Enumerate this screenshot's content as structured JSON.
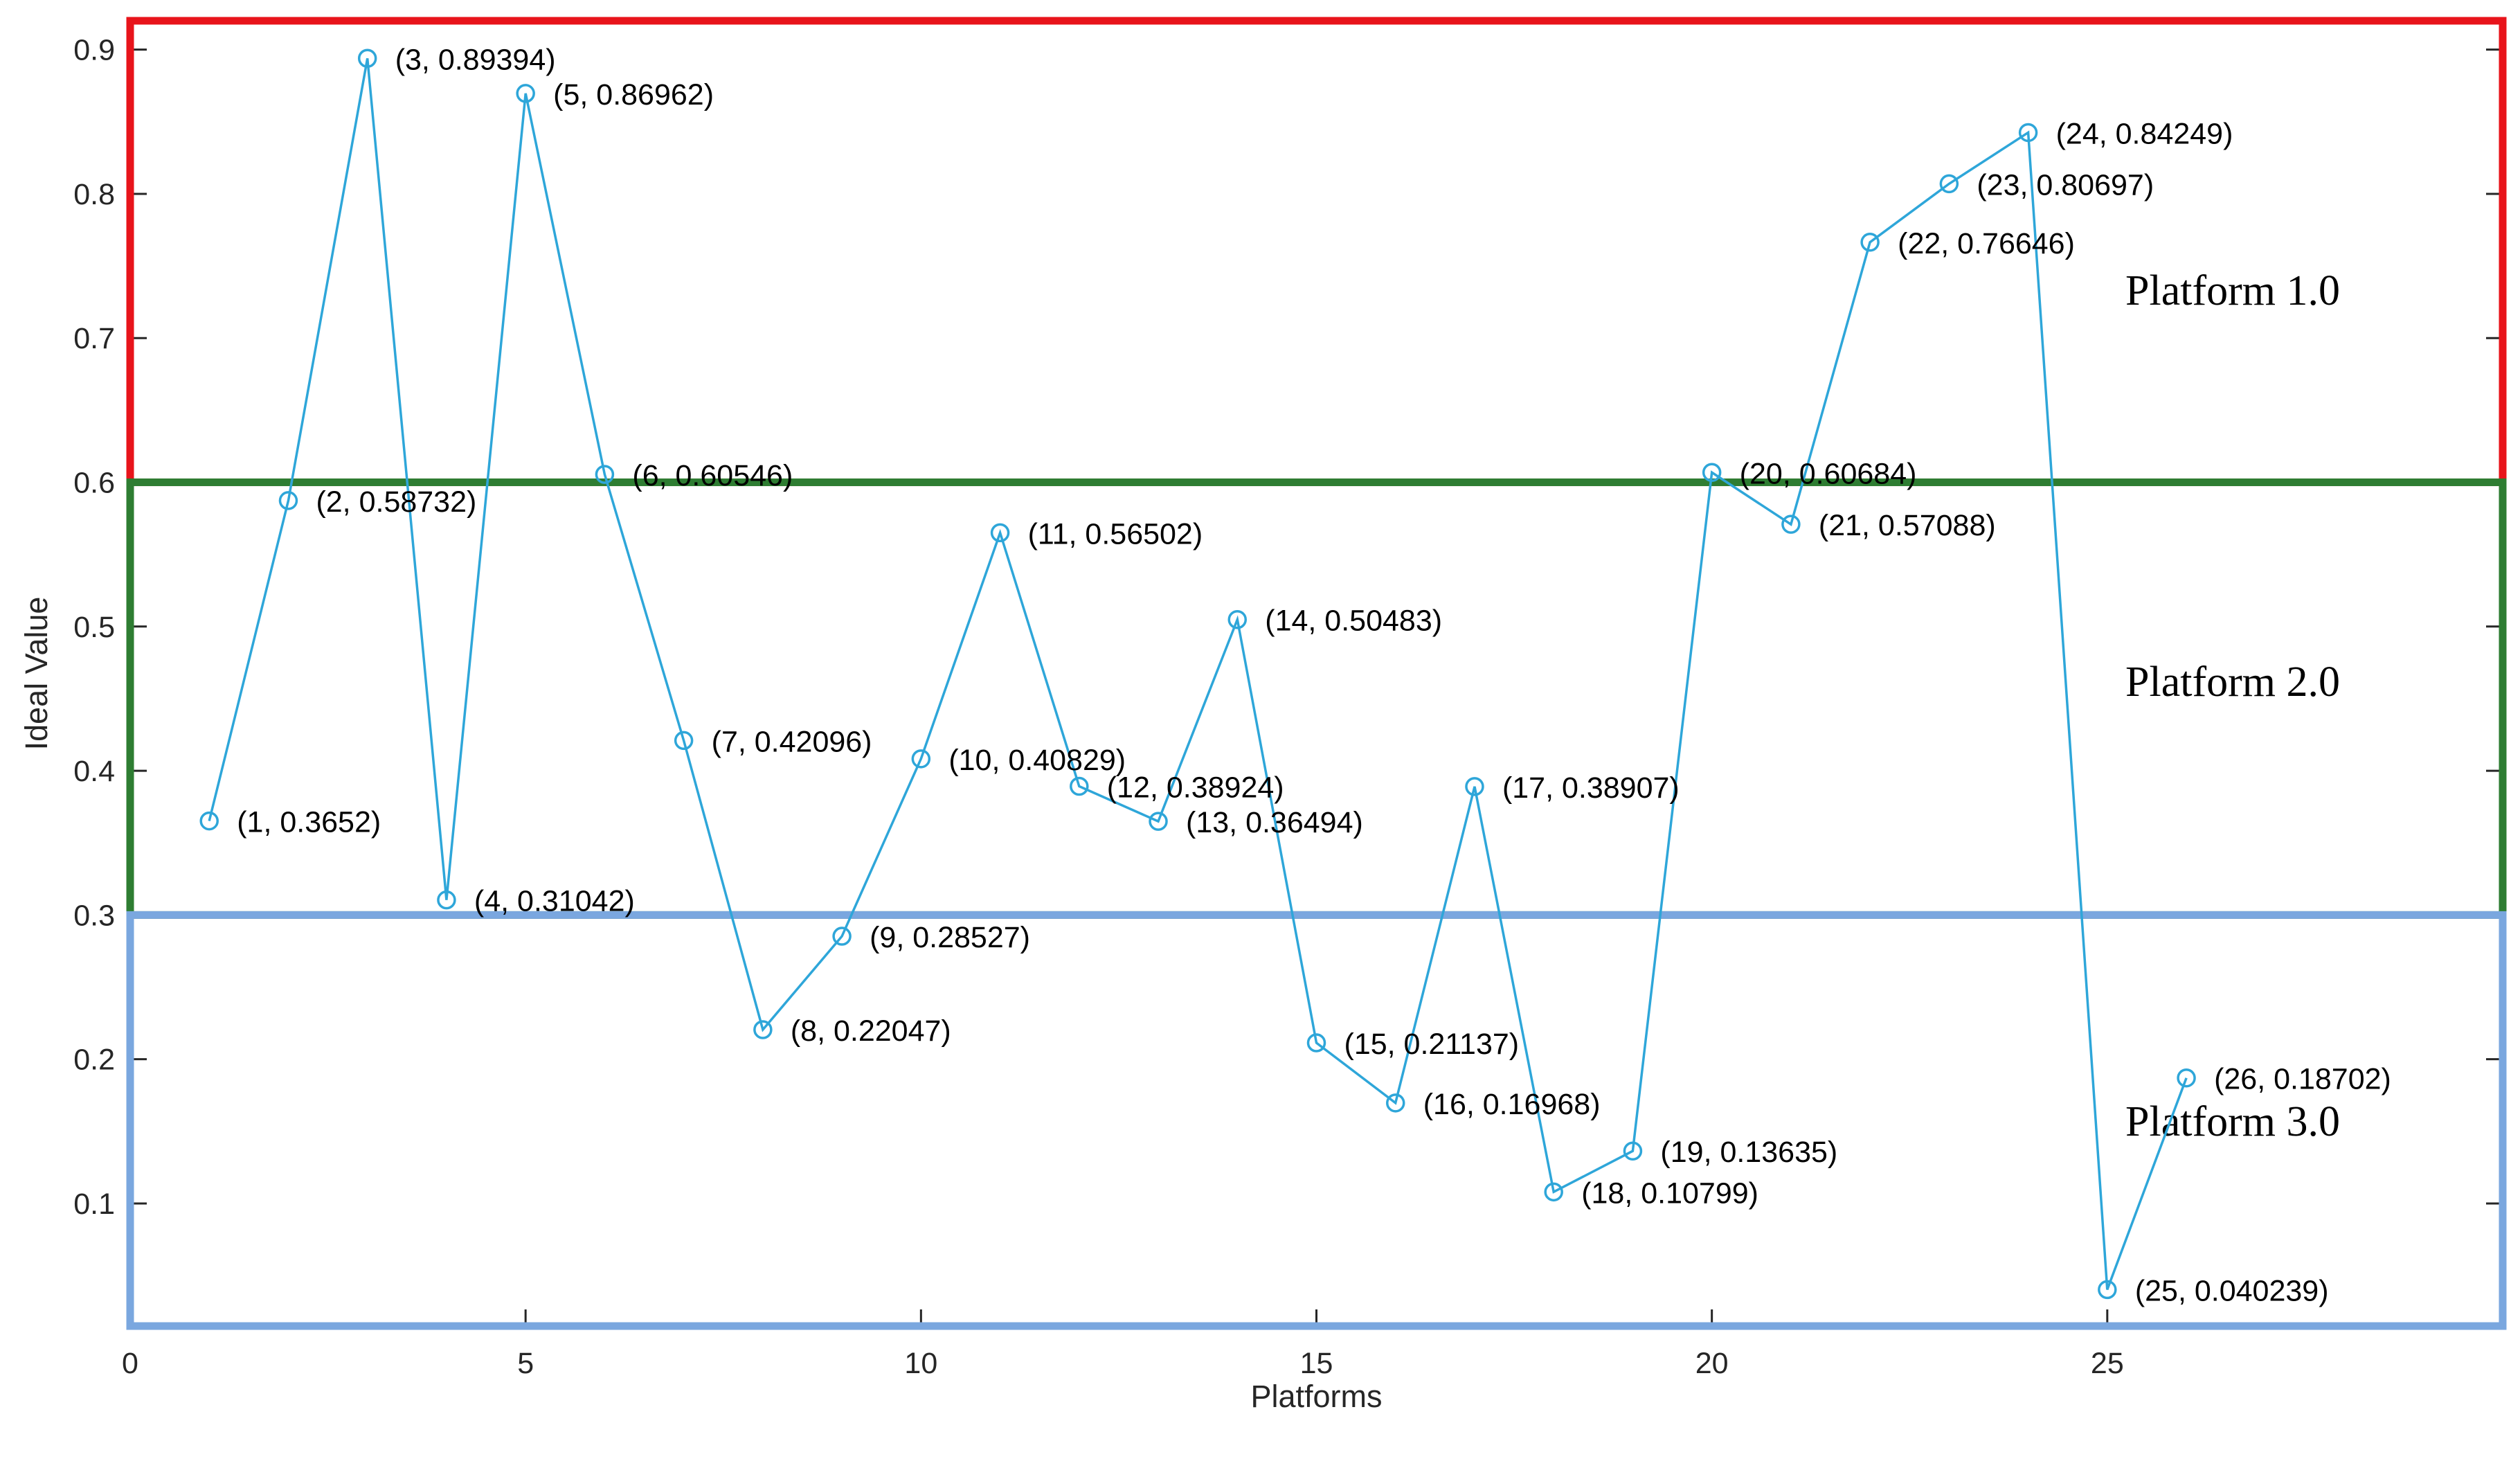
{
  "chart_data": {
    "type": "line",
    "title": "",
    "xlabel": "Platforms",
    "ylabel": "Ideal Value",
    "xlim": [
      0,
      30
    ],
    "ylim": [
      0.015,
      0.92
    ],
    "xticks": [
      0,
      5,
      10,
      15,
      20,
      25
    ],
    "xtick_labels": [
      "0",
      "5",
      "10",
      "15",
      "20",
      "25"
    ],
    "yticks": [
      0.1,
      0.2,
      0.3,
      0.4,
      0.5,
      0.6,
      0.7,
      0.8,
      0.9
    ],
    "ytick_labels": [
      "0.1",
      "0.2",
      "0.3",
      "0.4",
      "0.5",
      "0.6",
      "0.7",
      "0.8",
      "0.9"
    ],
    "grid": false,
    "series": [
      {
        "name": "Ideal Value",
        "color": "#2ea6d9",
        "marker": "circle",
        "x": [
          1,
          2,
          3,
          4,
          5,
          6,
          7,
          8,
          9,
          10,
          11,
          12,
          13,
          14,
          15,
          16,
          17,
          18,
          19,
          20,
          21,
          22,
          23,
          24,
          25,
          26
        ],
        "y": [
          0.3652,
          0.58732,
          0.89394,
          0.31042,
          0.86962,
          0.60546,
          0.42096,
          0.22047,
          0.28527,
          0.40829,
          0.56502,
          0.38924,
          0.36494,
          0.50483,
          0.21137,
          0.16968,
          0.38907,
          0.10799,
          0.13635,
          0.60684,
          0.57088,
          0.76646,
          0.80697,
          0.84249,
          0.040239,
          0.18702
        ],
        "point_labels": [
          "(1, 0.3652)",
          "(2, 0.58732)",
          "(3, 0.89394)",
          "(4, 0.31042)",
          "(5, 0.86962)",
          "(6, 0.60546)",
          "(7, 0.42096)",
          "(8, 0.22047)",
          "(9, 0.28527)",
          "(10, 0.40829)",
          "(11, 0.56502)",
          "(12, 0.38924)",
          "(13, 0.36494)",
          "(14, 0.50483)",
          "(15, 0.21137)",
          "(16, 0.16968)",
          "(17, 0.38907)",
          "(18, 0.10799)",
          "(19, 0.13635)",
          "(20, 0.60684)",
          "(21, 0.57088)",
          "(22, 0.76646)",
          "(23, 0.80697)",
          "(24, 0.84249)",
          "(25, 0.040239)",
          "(26, 0.18702)"
        ]
      }
    ],
    "bands": [
      {
        "label": "Platform 1.0",
        "y_range": [
          0.6,
          0.92
        ],
        "color": "#e8141b"
      },
      {
        "label": "Platform 2.0",
        "y_range": [
          0.3,
          0.6
        ],
        "color": "#2e7d32"
      },
      {
        "label": "Platform 3.0",
        "y_range": [
          0.015,
          0.3
        ],
        "color": "#7aa7df"
      }
    ]
  }
}
